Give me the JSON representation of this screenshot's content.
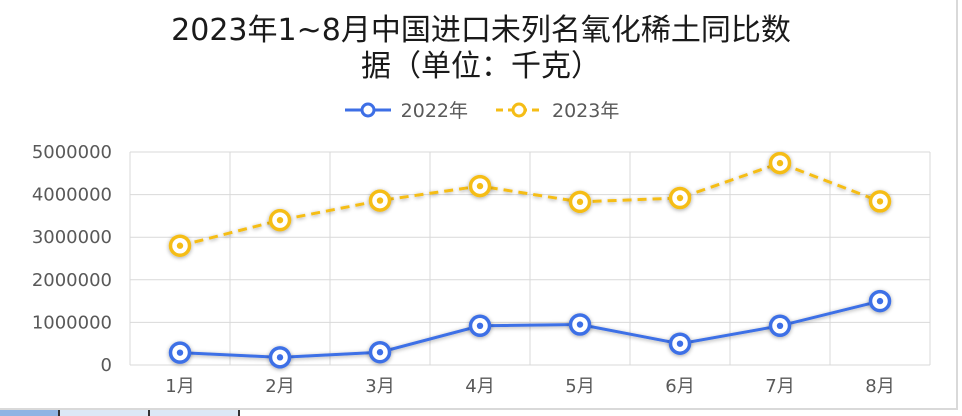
{
  "chart_data": {
    "type": "line",
    "title": "2023年1~8月中国进口未列名氧化稀土同比数据（单位：千克）",
    "title_line1": "2023年1~8月中国进口未列名氧化稀土同比数",
    "title_line2": "据（单位：千克）",
    "categories": [
      "1月",
      "2月",
      "3月",
      "4月",
      "5月",
      "6月",
      "7月",
      "8月"
    ],
    "series": [
      {
        "name": "2022年",
        "color": "#3d6fe6",
        "dashed": false,
        "values": [
          290000,
          180000,
          300000,
          920000,
          950000,
          500000,
          920000,
          1500000
        ]
      },
      {
        "name": "2023年",
        "color": "#f5bd16",
        "dashed": true,
        "values": [
          2800000,
          3400000,
          3860000,
          4200000,
          3830000,
          3920000,
          4740000,
          3840000
        ]
      }
    ],
    "y_ticks": [
      "0",
      "1000000",
      "2000000",
      "3000000",
      "4000000",
      "5000000"
    ],
    "ylim": [
      0,
      5000000
    ],
    "xlabel": "",
    "ylabel": "",
    "grid": true,
    "legend_position": "top-center"
  }
}
